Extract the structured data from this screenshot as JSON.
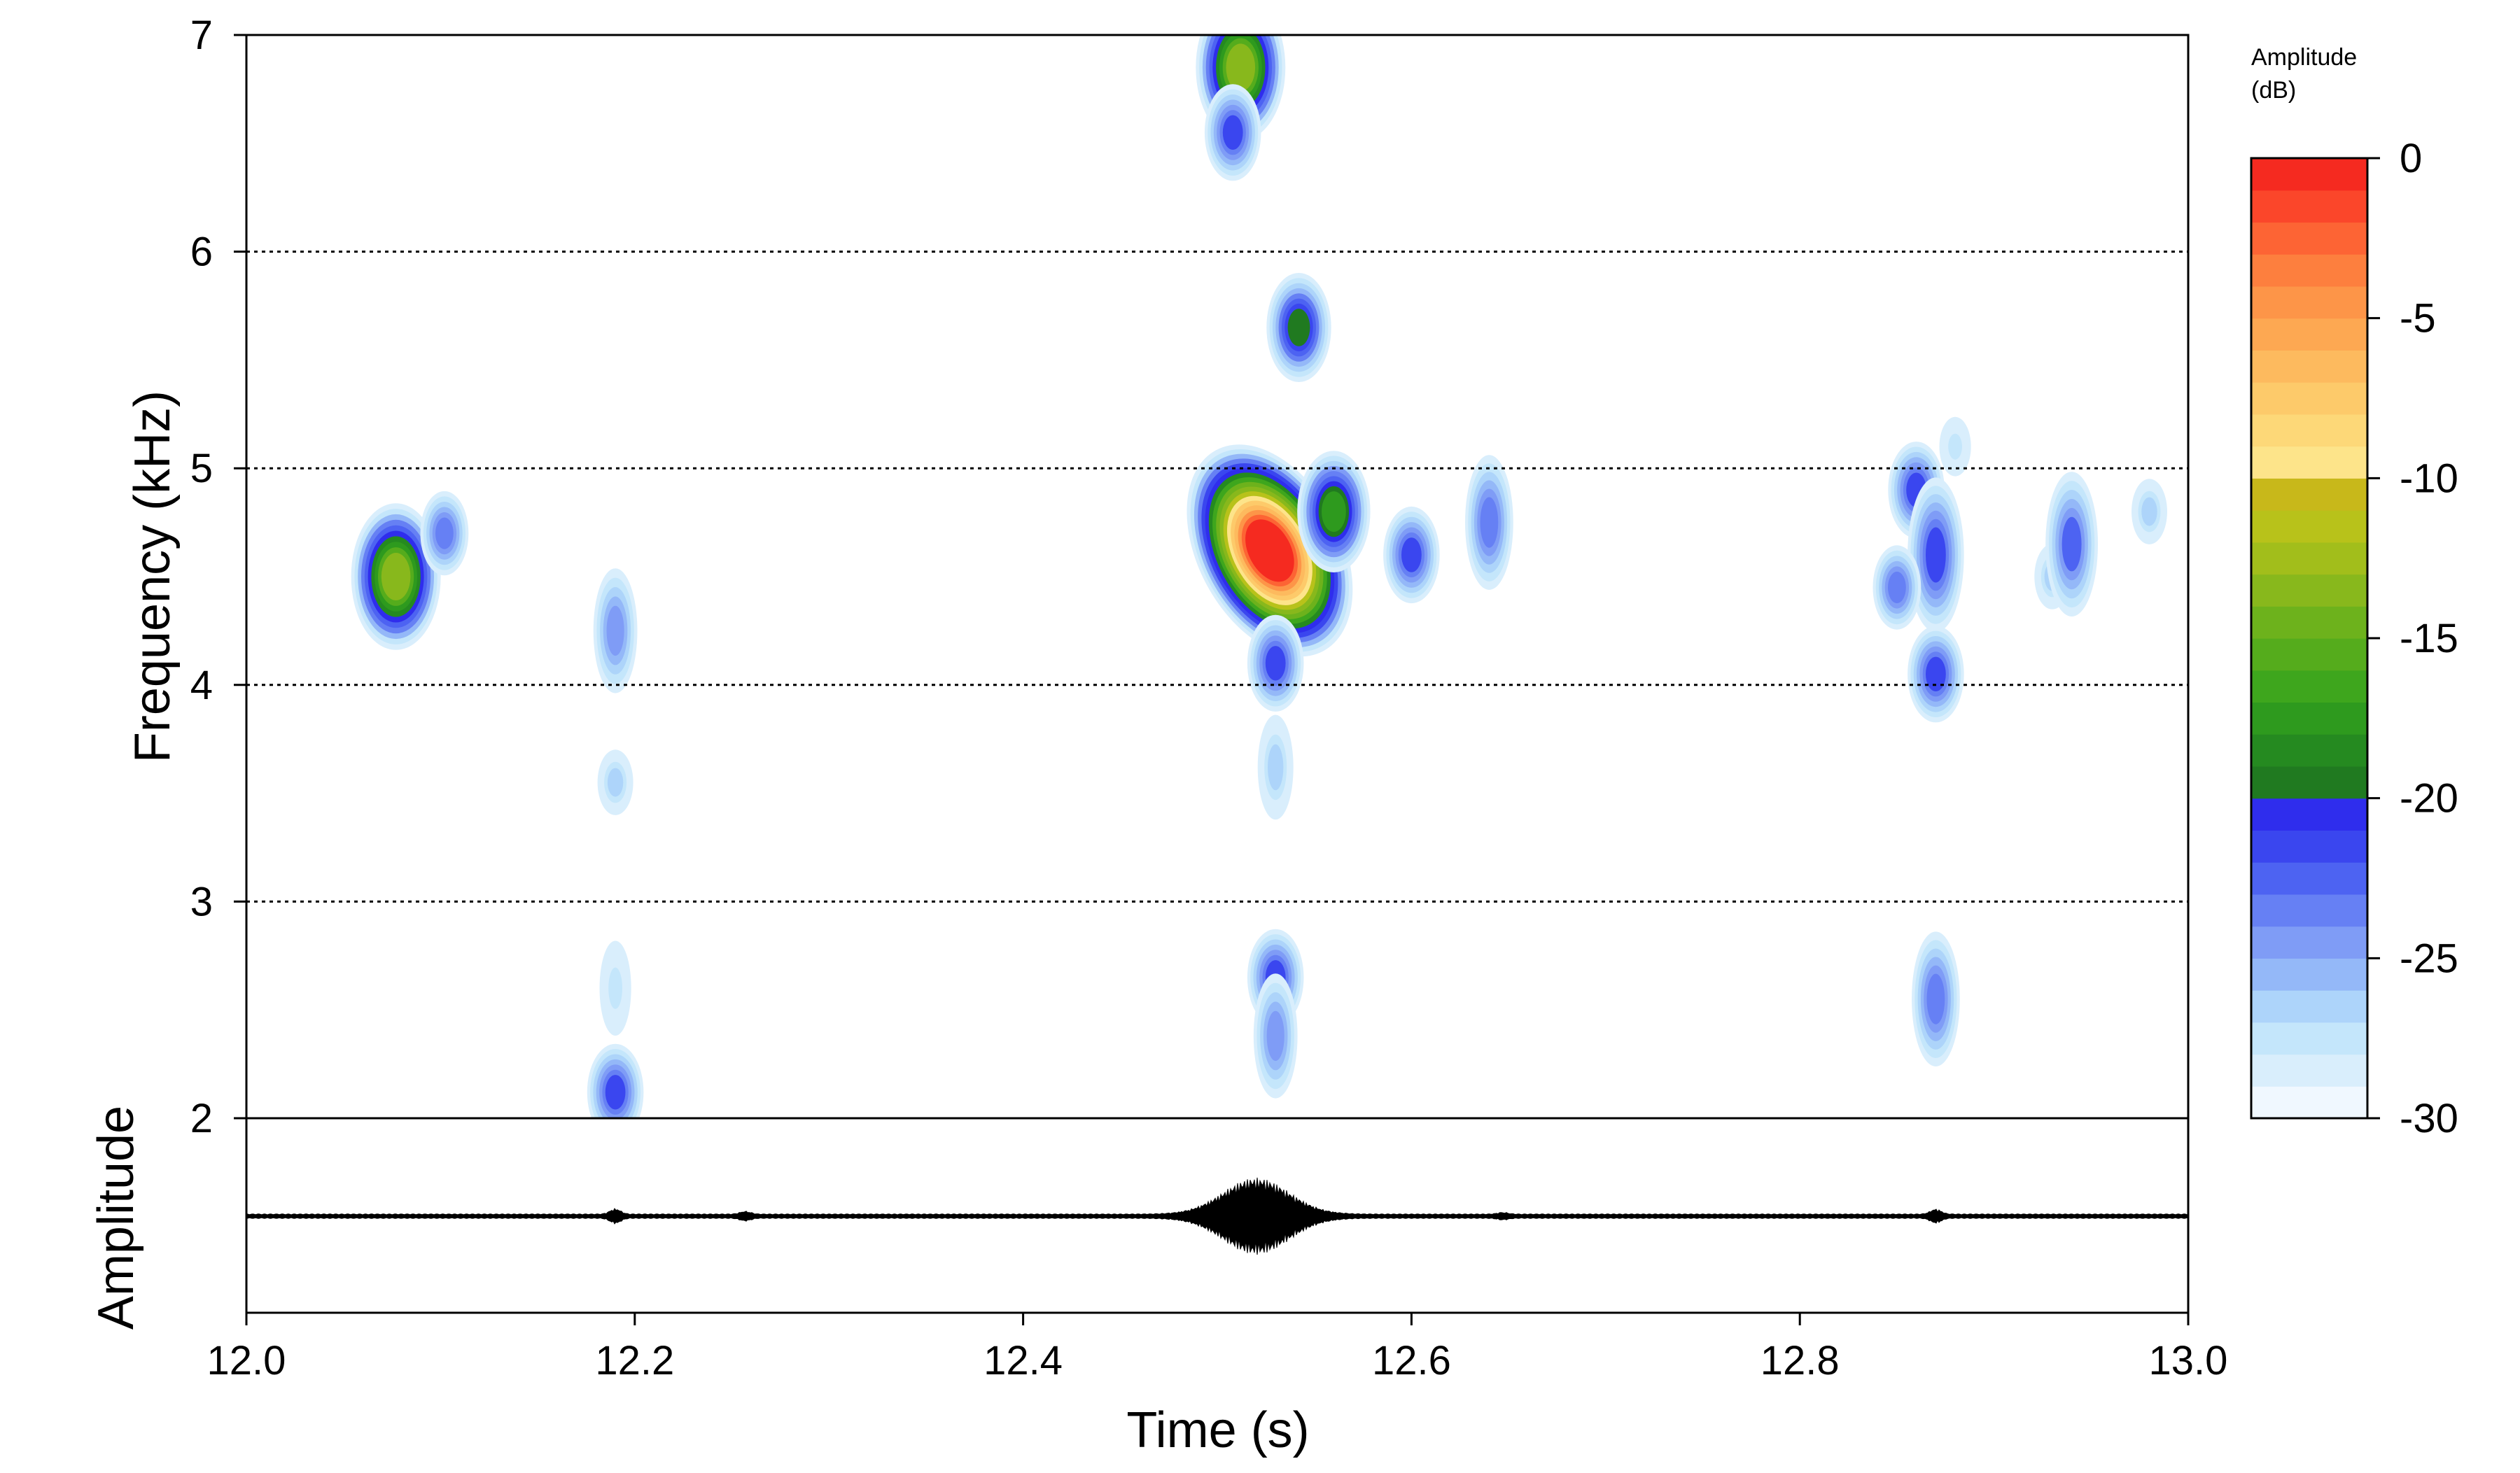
{
  "chart_data": {
    "type": "heatmap",
    "subtype": "spectrogram with oscillogram",
    "xlabel": "Time (s)",
    "ylabel": "Frequency (kHz)",
    "oscillogram_label": "Amplitude",
    "xlim": [
      12.0,
      13.0
    ],
    "ylim": [
      2,
      7
    ],
    "x_ticks": [
      12.0,
      12.2,
      12.4,
      12.6,
      12.8,
      13.0
    ],
    "x_tick_labels": [
      "12.0",
      "12.2",
      "12.4",
      "12.6",
      "12.8",
      "13.0"
    ],
    "y_ticks": [
      2,
      3,
      4,
      5,
      6,
      7
    ],
    "y_tick_labels": [
      "2",
      "3",
      "4",
      "5",
      "6",
      "7"
    ],
    "grid": "horizontal dotted lines at 3, 4, 5, 6 kHz",
    "colorbar": {
      "title_line1": "Amplitude",
      "title_line2": "(dB)",
      "range": [
        -30,
        0
      ],
      "ticks": [
        0,
        -5,
        -10,
        -15,
        -20,
        -25,
        -30
      ],
      "tick_labels": [
        "0",
        "-5",
        "-10",
        "-15",
        "-20",
        "-25",
        "-30"
      ],
      "levels": [
        "#f0f8ff",
        "#d9eefc",
        "#c4e6fb",
        "#add4fa",
        "#94b8f8",
        "#7f9cf6",
        "#6680f4",
        "#4d63f2",
        "#3a46ef",
        "#2f2ded",
        "#207a20",
        "#258a20",
        "#2e9a1e",
        "#3ea61d",
        "#55ac1c",
        "#6db21c",
        "#88b81c",
        "#a2be1b",
        "#b8c21a",
        "#c8b81a",
        "#fde48a",
        "#fdd878",
        "#fdca6a",
        "#fdba5e",
        "#fda852",
        "#fd9548",
        "#fd7f3e",
        "#fd6434",
        "#fb462a",
        "#f52a20"
      ]
    },
    "blobs": [
      {
        "t": 12.077,
        "f": 4.5,
        "peak_db": -14
      },
      {
        "t": 12.102,
        "f": 4.7,
        "peak_db": -24
      },
      {
        "t": 12.19,
        "f": 4.25,
        "peak_db": -25
      },
      {
        "t": 12.19,
        "f": 3.55,
        "peak_db": -27
      },
      {
        "t": 12.19,
        "f": 2.6,
        "peak_db": -28
      },
      {
        "t": 12.19,
        "f": 2.12,
        "peak_db": -22
      },
      {
        "t": 12.512,
        "f": 6.85,
        "peak_db": -14
      },
      {
        "t": 12.508,
        "f": 6.55,
        "peak_db": -22
      },
      {
        "t": 12.542,
        "f": 5.65,
        "peak_db": -20
      },
      {
        "t": 12.527,
        "f": 4.62,
        "peak_db": -1
      },
      {
        "t": 12.56,
        "f": 4.8,
        "peak_db": -18
      },
      {
        "t": 12.6,
        "f": 4.6,
        "peak_db": -22
      },
      {
        "t": 12.64,
        "f": 4.75,
        "peak_db": -24
      },
      {
        "t": 12.53,
        "f": 4.1,
        "peak_db": -22
      },
      {
        "t": 12.53,
        "f": 3.62,
        "peak_db": -27
      },
      {
        "t": 12.53,
        "f": 2.65,
        "peak_db": -22
      },
      {
        "t": 12.53,
        "f": 2.38,
        "peak_db": -25
      },
      {
        "t": 12.86,
        "f": 4.9,
        "peak_db": -22
      },
      {
        "t": 12.87,
        "f": 4.6,
        "peak_db": -22
      },
      {
        "t": 12.85,
        "f": 4.45,
        "peak_db": -24
      },
      {
        "t": 12.88,
        "f": 5.1,
        "peak_db": -28
      },
      {
        "t": 12.87,
        "f": 4.05,
        "peak_db": -22
      },
      {
        "t": 12.87,
        "f": 2.55,
        "peak_db": -24
      },
      {
        "t": 12.93,
        "f": 4.5,
        "peak_db": -27
      },
      {
        "t": 12.94,
        "f": 4.65,
        "peak_db": -23
      },
      {
        "t": 12.98,
        "f": 4.8,
        "peak_db": -27
      }
    ],
    "waveform_events": [
      {
        "t": 12.19,
        "amp": 0.15
      },
      {
        "t": 12.257,
        "amp": 0.08
      },
      {
        "t": 12.52,
        "amp": 1.0
      },
      {
        "t": 12.647,
        "amp": 0.05
      },
      {
        "t": 12.87,
        "amp": 0.14
      }
    ]
  }
}
